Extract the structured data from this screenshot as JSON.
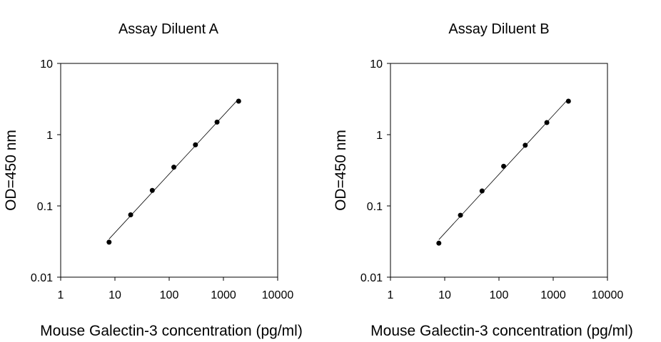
{
  "chart_data": [
    {
      "type": "scatter",
      "title": "Assay Diluent A",
      "xlabel": "Mouse Galectin-3 concentration (pg/ml)",
      "ylabel": "OD=450 nm",
      "xscale": "log",
      "yscale": "log",
      "xlim": [
        1,
        10000
      ],
      "ylim": [
        0.01,
        10
      ],
      "xticks": [
        "1",
        "10",
        "100",
        "1000",
        "10000"
      ],
      "yticks": [
        "0.01",
        "0.1",
        "1",
        "10"
      ],
      "grid": false,
      "legend": "none",
      "series": [
        {
          "x": [
            7.8,
            19.5,
            48.8,
            122,
            305,
            763,
            1907
          ],
          "y": [
            0.031,
            0.075,
            0.165,
            0.35,
            0.72,
            1.5,
            2.95
          ],
          "marker": "circle",
          "fit_line": true
        }
      ]
    },
    {
      "type": "scatter",
      "title": "Assay Diluent B",
      "xlabel": "Mouse Galectin-3 concentration (pg/ml)",
      "ylabel": "OD=450 nm",
      "xscale": "log",
      "yscale": "log",
      "xlim": [
        1,
        10000
      ],
      "ylim": [
        0.01,
        10
      ],
      "xticks": [
        "1",
        "10",
        "100",
        "1000",
        "10000"
      ],
      "yticks": [
        "0.01",
        "0.1",
        "1",
        "10"
      ],
      "grid": false,
      "legend": "none",
      "series": [
        {
          "x": [
            7.8,
            19.5,
            48.8,
            122,
            305,
            763,
            1907
          ],
          "y": [
            0.03,
            0.074,
            0.162,
            0.36,
            0.71,
            1.48,
            2.95
          ],
          "marker": "circle",
          "fit_line": true
        }
      ]
    }
  ]
}
